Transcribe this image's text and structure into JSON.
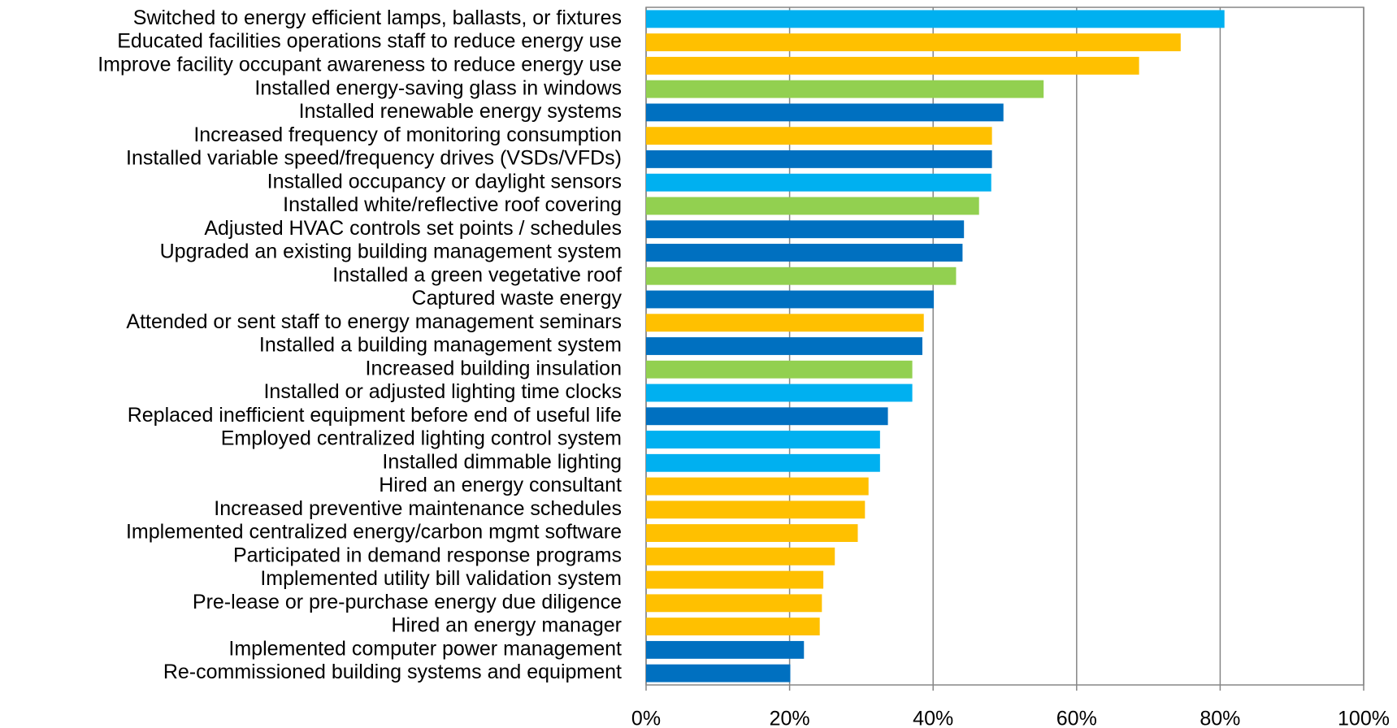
{
  "chart_data": {
    "type": "barh",
    "categories": [
      "Switched to energy efficient lamps, ballasts, or fixtures",
      "Educated facilities operations staff to reduce energy use",
      "Improve facility occupant awareness to reduce energy use",
      "Installed energy-saving glass in windows",
      "Installed renewable energy systems",
      "Increased frequency of monitoring consumption",
      "Installed variable speed/frequency drives (VSDs/VFDs)",
      "Installed occupancy or daylight sensors",
      "Installed white/reflective roof covering",
      "Adjusted HVAC controls set points / schedules",
      "Upgraded an existing building management system",
      "Installed a green vegetative roof",
      "Captured waste energy",
      "Attended or sent staff to energy management seminars",
      "Installed a building management system",
      "Increased building insulation",
      "Installed or adjusted lighting time clocks",
      "Replaced inefficient equipment before end of useful life",
      "Employed centralized lighting control system",
      "Installed dimmable lighting",
      "Hired an energy consultant",
      "Increased preventive maintenance schedules",
      "Implemented centralized energy/carbon mgmt software",
      "Participated in demand response programs",
      "Implemented utility bill validation system",
      "Pre-lease or pre-purchase energy due diligence",
      "Hired an energy manager",
      "Implemented computer power management",
      "Re-commissioned building systems and equipment"
    ],
    "values": [
      80.6,
      74.5,
      68.7,
      55.4,
      49.8,
      48.2,
      48.2,
      48.1,
      46.4,
      44.3,
      44.1,
      43.2,
      40.1,
      38.7,
      38.5,
      37.1,
      37.1,
      33.7,
      32.6,
      32.6,
      31.0,
      30.5,
      29.5,
      26.3,
      24.7,
      24.5,
      24.2,
      22.0,
      20.1
    ],
    "colors": [
      "#00b0f0",
      "#ffc000",
      "#ffc000",
      "#92d050",
      "#0070c0",
      "#ffc000",
      "#0070c0",
      "#00b0f0",
      "#92d050",
      "#0070c0",
      "#0070c0",
      "#92d050",
      "#0070c0",
      "#ffc000",
      "#0070c0",
      "#92d050",
      "#00b0f0",
      "#0070c0",
      "#00b0f0",
      "#00b0f0",
      "#ffc000",
      "#ffc000",
      "#ffc000",
      "#ffc000",
      "#ffc000",
      "#ffc000",
      "#ffc000",
      "#0070c0",
      "#0070c0"
    ],
    "xlim": [
      0,
      100
    ],
    "xticks": [
      {
        "value": 0,
        "label": "0%"
      },
      {
        "value": 20,
        "label": "20%"
      },
      {
        "value": 40,
        "label": "40%"
      },
      {
        "value": 60,
        "label": "60%"
      },
      {
        "value": 80,
        "label": "80%"
      },
      {
        "value": 100,
        "label": "100%"
      }
    ],
    "grid": true
  }
}
